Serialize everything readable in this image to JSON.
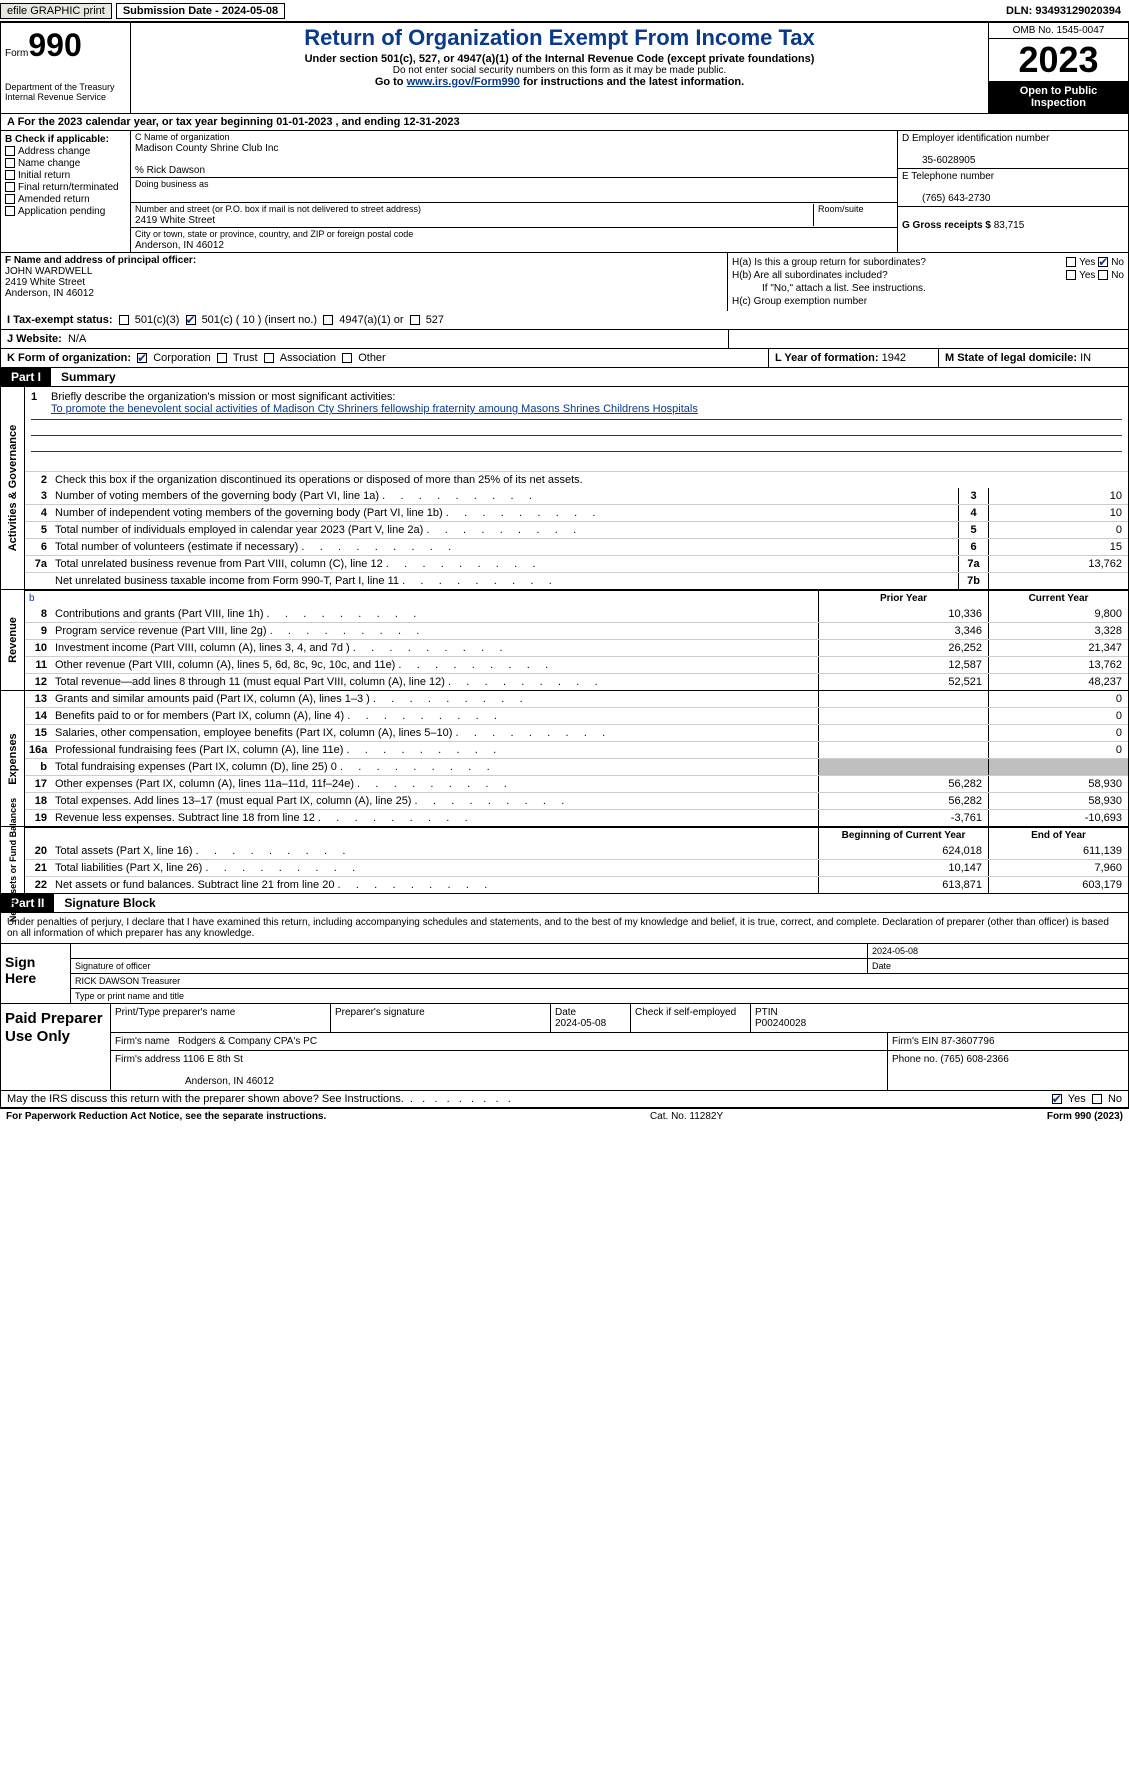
{
  "topbar": {
    "efile": "efile GRAPHIC print",
    "submission": "Submission Date - 2024-05-08",
    "dln": "DLN: 93493129020394"
  },
  "header": {
    "form_word": "Form",
    "form_num": "990",
    "dept": "Department of the Treasury\nInternal Revenue Service",
    "title": "Return of Organization Exempt From Income Tax",
    "sub1": "Under section 501(c), 527, or 4947(a)(1) of the Internal Revenue Code (except private foundations)",
    "sub2": "Do not enter social security numbers on this form as it may be made public.",
    "sub3_pre": "Go to ",
    "sub3_link": "www.irs.gov/Form990",
    "sub3_post": " for instructions and the latest information.",
    "omb": "OMB No. 1545-0047",
    "year": "2023",
    "inspect": "Open to Public Inspection"
  },
  "row_a": "A  For the 2023 calendar year, or tax year beginning 01-01-2023    , and ending 12-31-2023",
  "box_b": {
    "label": "B Check if applicable:",
    "items": [
      "Address change",
      "Name change",
      "Initial return",
      "Final return/terminated",
      "Amended return",
      "Application pending"
    ]
  },
  "box_c": {
    "name_lbl": "C Name of organization",
    "name_val": "Madison County Shrine Club Inc",
    "care_of": "% Rick Dawson",
    "dba_lbl": "Doing business as",
    "addr_lbl": "Number and street (or P.O. box if mail is not delivered to street address)",
    "addr_val": "2419 White Street",
    "room_lbl": "Room/suite",
    "city_lbl": "City or town, state or province, country, and ZIP or foreign postal code",
    "city_val": "Anderson, IN  46012"
  },
  "box_d": {
    "ein_lbl": "D Employer identification number",
    "ein_val": "35-6028905",
    "tel_lbl": "E Telephone number",
    "tel_val": "(765) 643-2730",
    "gross_lbl": "G Gross receipts $",
    "gross_val": "83,715"
  },
  "box_f": {
    "lbl": "F  Name and address of principal officer:",
    "name": "JOHN WARDWELL",
    "addr1": "2419 White Street",
    "addr2": "Anderson, IN  46012"
  },
  "box_h": {
    "ha": "H(a)  Is this a group return for subordinates?",
    "hb": "H(b)  Are all subordinates included?",
    "hb_note": "If \"No,\" attach a list. See instructions.",
    "hc": "H(c)  Group exemption number",
    "yes": "Yes",
    "no": "No"
  },
  "row_i": {
    "lbl": "I   Tax-exempt status:",
    "o1": "501(c)(3)",
    "o2": "501(c) ( 10 ) (insert no.)",
    "o3": "4947(a)(1) or",
    "o4": "527"
  },
  "row_j": {
    "lbl": "J   Website:",
    "val": "N/A"
  },
  "row_k": {
    "lbl": "K Form of organization:",
    "o1": "Corporation",
    "o2": "Trust",
    "o3": "Association",
    "o4": "Other",
    "l_lbl": "L Year of formation:",
    "l_val": "1942",
    "m_lbl": "M State of legal domicile:",
    "m_val": "IN"
  },
  "part1": {
    "lbl": "Part I",
    "title": "Summary"
  },
  "mission": {
    "q": "Briefly describe the organization's mission or most significant activities:",
    "a": "To promote the benevolent social activities of Madison Cty Shriners fellowship fraternity amoung Masons Shrines Childrens Hospitals"
  },
  "line2": "Check this box      if the organization discontinued its operations or disposed of more than 25% of its net assets.",
  "gov_rows": [
    {
      "n": "3",
      "d": "Number of voting members of the governing body (Part VI, line 1a)",
      "box": "3",
      "v": "10"
    },
    {
      "n": "4",
      "d": "Number of independent voting members of the governing body (Part VI, line 1b)",
      "box": "4",
      "v": "10"
    },
    {
      "n": "5",
      "d": "Total number of individuals employed in calendar year 2023 (Part V, line 2a)",
      "box": "5",
      "v": "0"
    },
    {
      "n": "6",
      "d": "Total number of volunteers (estimate if necessary)",
      "box": "6",
      "v": "15"
    },
    {
      "n": "7a",
      "d": "Total unrelated business revenue from Part VIII, column (C), line 12",
      "box": "7a",
      "v": "13,762"
    },
    {
      "n": "",
      "d": "Net unrelated business taxable income from Form 990-T, Part I, line 11",
      "box": "7b",
      "v": ""
    }
  ],
  "rev_hdr_b": "b",
  "rev_hdr1": "Prior Year",
  "rev_hdr2": "Current Year",
  "rev_rows": [
    {
      "n": "8",
      "d": "Contributions and grants (Part VIII, line 1h)",
      "p": "10,336",
      "c": "9,800"
    },
    {
      "n": "9",
      "d": "Program service revenue (Part VIII, line 2g)",
      "p": "3,346",
      "c": "3,328"
    },
    {
      "n": "10",
      "d": "Investment income (Part VIII, column (A), lines 3, 4, and 7d )",
      "p": "26,252",
      "c": "21,347"
    },
    {
      "n": "11",
      "d": "Other revenue (Part VIII, column (A), lines 5, 6d, 8c, 9c, 10c, and 11e)",
      "p": "12,587",
      "c": "13,762"
    },
    {
      "n": "12",
      "d": "Total revenue—add lines 8 through 11 (must equal Part VIII, column (A), line 12)",
      "p": "52,521",
      "c": "48,237"
    }
  ],
  "exp_rows": [
    {
      "n": "13",
      "d": "Grants and similar amounts paid (Part IX, column (A), lines 1–3 )",
      "p": "",
      "c": "0"
    },
    {
      "n": "14",
      "d": "Benefits paid to or for members (Part IX, column (A), line 4)",
      "p": "",
      "c": "0"
    },
    {
      "n": "15",
      "d": "Salaries, other compensation, employee benefits (Part IX, column (A), lines 5–10)",
      "p": "",
      "c": "0"
    },
    {
      "n": "16a",
      "d": "Professional fundraising fees (Part IX, column (A), line 11e)",
      "p": "",
      "c": "0"
    },
    {
      "n": "b",
      "d": "Total fundraising expenses (Part IX, column (D), line 25) 0",
      "p": "SHADE",
      "c": "SHADE"
    },
    {
      "n": "17",
      "d": "Other expenses (Part IX, column (A), lines 11a–11d, 11f–24e)",
      "p": "56,282",
      "c": "58,930"
    },
    {
      "n": "18",
      "d": "Total expenses. Add lines 13–17 (must equal Part IX, column (A), line 25)",
      "p": "56,282",
      "c": "58,930"
    },
    {
      "n": "19",
      "d": "Revenue less expenses. Subtract line 18 from line 12",
      "p": "-3,761",
      "c": "-10,693"
    }
  ],
  "na_hdr1": "Beginning of Current Year",
  "na_hdr2": "End of Year",
  "na_rows": [
    {
      "n": "20",
      "d": "Total assets (Part X, line 16)",
      "p": "624,018",
      "c": "611,139"
    },
    {
      "n": "21",
      "d": "Total liabilities (Part X, line 26)",
      "p": "10,147",
      "c": "7,960"
    },
    {
      "n": "22",
      "d": "Net assets or fund balances. Subtract line 21 from line 20",
      "p": "613,871",
      "c": "603,179"
    }
  ],
  "vlabels": {
    "gov": "Activities & Governance",
    "rev": "Revenue",
    "exp": "Expenses",
    "na": "Net Assets or\nFund Balances"
  },
  "part2": {
    "lbl": "Part II",
    "title": "Signature Block"
  },
  "sig_text": "Under penalties of perjury, I declare that I have examined this return, including accompanying schedules and statements, and to the best of my knowledge and belief, it is true, correct, and complete. Declaration of preparer (other than officer) is based on all information of which preparer has any knowledge.",
  "sign": {
    "left": "Sign Here",
    "date": "2024-05-08",
    "sig_lbl": "Signature of officer",
    "date_lbl": "Date",
    "name": "RICK DAWSON  Treasurer",
    "name_lbl": "Type or print name and title"
  },
  "prep": {
    "left": "Paid Preparer Use Only",
    "h1": "Print/Type preparer's name",
    "h2": "Preparer's signature",
    "h3": "Date",
    "h3v": "2024-05-08",
    "h4": "Check       if self-employed",
    "h5": "PTIN",
    "h5v": "P00240028",
    "firm_lbl": "Firm's name",
    "firm_val": "Rodgers & Company CPA's PC",
    "ein_lbl": "Firm's EIN",
    "ein_val": "87-3607796",
    "addr_lbl": "Firm's address",
    "addr_val": "1106 E 8th St",
    "addr_val2": "Anderson, IN  46012",
    "phone_lbl": "Phone no.",
    "phone_val": "(765) 608-2366"
  },
  "discuss": {
    "q": "May the IRS discuss this return with the preparer shown above? See Instructions.",
    "yes": "Yes",
    "no": "No"
  },
  "footer": {
    "left": "For Paperwork Reduction Act Notice, see the separate instructions.",
    "mid": "Cat. No. 11282Y",
    "right": "Form 990 (2023)"
  }
}
